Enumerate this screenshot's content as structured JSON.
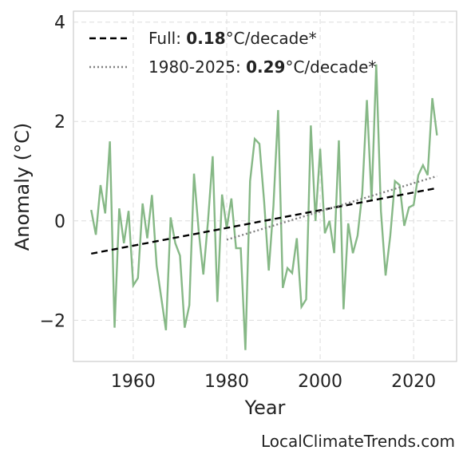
{
  "chart_data": {
    "type": "line",
    "xlabel": "Year",
    "ylabel": "Anomaly (°C)",
    "footer": "LocalClimateTrends.com",
    "xlim": [
      1947.2,
      2029.2
    ],
    "ylim": [
      -2.83,
      4.22
    ],
    "xticks": [
      1960,
      1980,
      2000,
      2020
    ],
    "yticks": [
      {
        "value": -2,
        "label": "−2"
      },
      0,
      2,
      4
    ],
    "grid": true,
    "legend": "upper left",
    "x": [
      1951,
      1952,
      1953,
      1954,
      1955,
      1956,
      1957,
      1958,
      1959,
      1960,
      1961,
      1962,
      1963,
      1964,
      1965,
      1966,
      1967,
      1968,
      1969,
      1970,
      1971,
      1972,
      1973,
      1974,
      1975,
      1976,
      1977,
      1978,
      1979,
      1980,
      1981,
      1982,
      1983,
      1984,
      1985,
      1986,
      1987,
      1988,
      1989,
      1990,
      1991,
      1992,
      1993,
      1994,
      1995,
      1996,
      1997,
      1998,
      1999,
      2000,
      2001,
      2002,
      2003,
      2004,
      2005,
      2006,
      2007,
      2008,
      2009,
      2010,
      2011,
      2012,
      2013,
      2014,
      2015,
      2016,
      2017,
      2018,
      2019,
      2020,
      2021,
      2022,
      2023,
      2024,
      2025
    ],
    "series": [
      {
        "color": "#86b886",
        "style": "solid",
        "values": [
          0.22,
          -0.28,
          0.72,
          0.15,
          1.6,
          -2.15,
          0.25,
          -0.45,
          0.2,
          -1.3,
          -1.15,
          0.35,
          -0.35,
          0.52,
          -0.9,
          -1.55,
          -2.2,
          0.07,
          -0.45,
          -0.7,
          -2.15,
          -1.7,
          0.95,
          -0.2,
          -1.08,
          0.0,
          1.3,
          -1.63,
          0.53,
          -0.15,
          0.45,
          -0.55,
          -0.55,
          -2.6,
          0.8,
          1.65,
          1.55,
          0.4,
          -1.0,
          0.3,
          2.23,
          -1.35,
          -0.95,
          -1.05,
          -0.35,
          -1.73,
          -1.58,
          1.92,
          0.0,
          1.45,
          -0.25,
          0.0,
          -0.65,
          1.62,
          -1.78,
          -0.05,
          -0.65,
          -0.3,
          0.55,
          2.43,
          0.4,
          3.15,
          0.2,
          -1.1,
          -0.3,
          0.8,
          0.72,
          -0.1,
          0.27,
          0.32,
          0.92,
          1.12,
          0.92,
          2.47,
          1.72
        ]
      },
      {
        "color": "#000000",
        "style": "dashed",
        "x": [
          1951,
          2025
        ],
        "values": [
          -0.66,
          0.66
        ],
        "label_prefix": "Full: ",
        "rate": "0.18",
        "label_suffix": "°C/decade*"
      },
      {
        "color": "#808080",
        "style": "dotted",
        "x": [
          1980,
          2025
        ],
        "values": [
          -0.38,
          0.9
        ],
        "label_prefix": "1980-2025: ",
        "rate": "0.29",
        "label_suffix": "°C/decade*"
      }
    ]
  }
}
